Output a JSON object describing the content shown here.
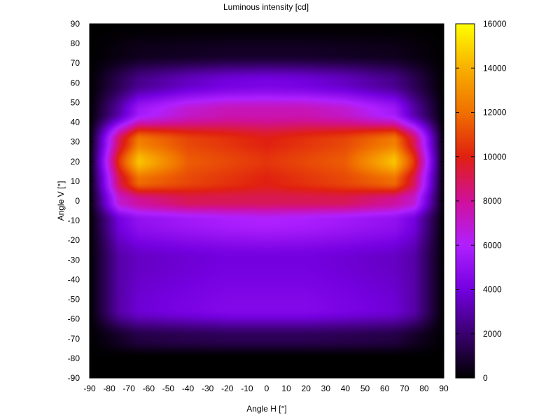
{
  "chart_data": {
    "type": "heatmap",
    "title": "Luminous intensity [cd]",
    "xlabel": "Angle H [°]",
    "ylabel": "Angle V [°]",
    "xlim": [
      -90,
      90
    ],
    "ylim": [
      -90,
      90
    ],
    "xticks": [
      -90,
      -80,
      -70,
      -60,
      -50,
      -40,
      -30,
      -20,
      -10,
      0,
      10,
      20,
      30,
      40,
      50,
      60,
      70,
      80,
      90
    ],
    "yticks": [
      -90,
      -80,
      -70,
      -60,
      -50,
      -40,
      -30,
      -20,
      -10,
      0,
      10,
      20,
      30,
      40,
      50,
      60,
      70,
      80,
      90
    ],
    "colorbar": {
      "range": [
        0,
        16000
      ],
      "ticks": [
        0,
        2000,
        4000,
        6000,
        8000,
        10000,
        12000,
        14000,
        16000
      ],
      "palette": [
        "#000000",
        "#3a0070",
        "#7400e0",
        "#b020ff",
        "#d0109a",
        "#e02010",
        "#f07000",
        "#f8b000",
        "#ffff00"
      ]
    },
    "z_samples": {
      "columns": [
        -90,
        -75,
        -65,
        -40,
        -20,
        0,
        20,
        40,
        65,
        75,
        90
      ],
      "rows": [
        {
          "v": 90,
          "z": [
            0,
            0,
            0,
            0,
            0,
            0,
            0,
            0,
            0,
            0,
            0
          ]
        },
        {
          "v": 75,
          "z": [
            0,
            300,
            500,
            600,
            700,
            700,
            700,
            600,
            500,
            300,
            0
          ]
        },
        {
          "v": 60,
          "z": [
            0,
            1500,
            2500,
            3500,
            4000,
            4200,
            4000,
            3500,
            2500,
            1500,
            0
          ]
        },
        {
          "v": 45,
          "z": [
            0,
            3000,
            5500,
            7000,
            7500,
            7500,
            7500,
            7000,
            5500,
            3000,
            0
          ]
        },
        {
          "v": 30,
          "z": [
            0,
            9000,
            12500,
            11000,
            10500,
            10000,
            10500,
            11000,
            12500,
            9000,
            0
          ]
        },
        {
          "v": 20,
          "z": [
            0,
            10500,
            14500,
            11500,
            11000,
            10500,
            11000,
            11500,
            14500,
            10500,
            0
          ]
        },
        {
          "v": 10,
          "z": [
            0,
            9000,
            12000,
            11000,
            10500,
            10000,
            10500,
            11000,
            12000,
            9000,
            0
          ]
        },
        {
          "v": 0,
          "z": [
            0,
            7000,
            8000,
            9000,
            9000,
            9000,
            9000,
            9000,
            8000,
            7000,
            0
          ]
        },
        {
          "v": -10,
          "z": [
            0,
            4000,
            5000,
            5500,
            5800,
            6000,
            5800,
            5500,
            5000,
            4000,
            0
          ]
        },
        {
          "v": -30,
          "z": [
            0,
            3000,
            3500,
            3800,
            4000,
            4000,
            4000,
            3800,
            3500,
            3000,
            0
          ]
        },
        {
          "v": -55,
          "z": [
            0,
            3000,
            3800,
            4200,
            4500,
            4500,
            4500,
            4200,
            3800,
            3000,
            0
          ]
        },
        {
          "v": -70,
          "z": [
            0,
            700,
            1200,
            1400,
            1500,
            1500,
            1500,
            1400,
            1200,
            700,
            0
          ]
        },
        {
          "v": -80,
          "z": [
            0,
            0,
            0,
            0,
            0,
            0,
            0,
            0,
            0,
            0,
            0
          ]
        },
        {
          "v": -90,
          "z": [
            0,
            0,
            0,
            0,
            0,
            0,
            0,
            0,
            0,
            0,
            0
          ]
        }
      ]
    }
  }
}
